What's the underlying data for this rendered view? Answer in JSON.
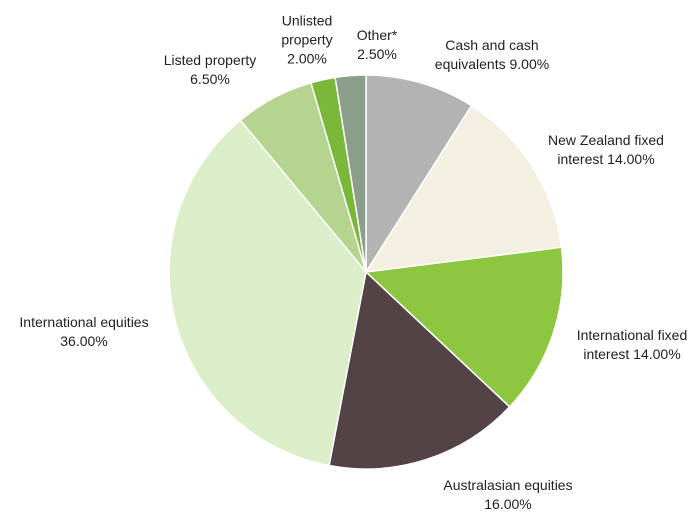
{
  "chart_data": {
    "type": "pie",
    "categories": [
      "Cash and cash equivalents",
      "New Zealand fixed interest",
      "International fixed interest",
      "Australasian equities",
      "International equities",
      "Listed property",
      "Unlisted property",
      "Other*"
    ],
    "values": [
      9,
      14,
      14,
      16,
      36,
      6.5,
      2,
      2.5
    ],
    "value_labels": [
      "9.00%",
      "14.00%",
      "14.00%",
      "16.00%",
      "36.00%",
      "6.50%",
      "2.00%",
      "2.50%"
    ],
    "colors": [
      "#b3b3b3",
      "#f3f0e2",
      "#8dc63f",
      "#534246",
      "#dcedca",
      "#b5d48f",
      "#7bb83a",
      "#8a9e8b"
    ]
  }
}
